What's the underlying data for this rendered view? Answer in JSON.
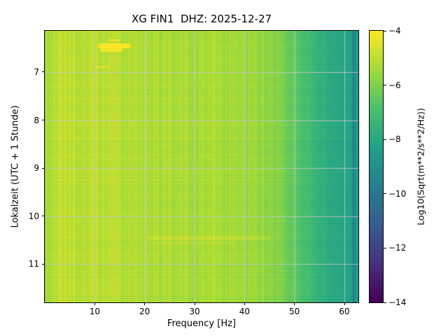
{
  "chart_data": {
    "type": "heatmap",
    "subtype": "spectrogram",
    "title": "XG FIN1  DHZ: 2025-12-27",
    "xlabel": "Frequency [Hz]",
    "ylabel": "Lokalzeit (UTC + 1 Stunde)",
    "xlim": [
      0,
      62.8
    ],
    "ylim_hours": [
      6.14,
      11.8
    ],
    "xticks": [
      10,
      20,
      30,
      40,
      50,
      60
    ],
    "yticks": [
      7,
      8,
      9,
      10,
      11
    ],
    "grid": true,
    "grid_color": "#c8c8c8",
    "colormap": "viridis",
    "colorbar": {
      "label": "Log10(Sqrt(m**2/s**2/Hz))",
      "ticks": [
        -4,
        -6,
        -8,
        -10,
        -12,
        -14
      ],
      "vmin": -14,
      "vmax": -4
    },
    "spectrum_profile": [
      [
        0.0,
        -5.6
      ],
      [
        0.8,
        -5.15
      ],
      [
        3.0,
        -5.0
      ],
      [
        8.0,
        -5.05
      ],
      [
        14.0,
        -5.1
      ],
      [
        22.0,
        -5.2
      ],
      [
        30.0,
        -5.3
      ],
      [
        38.0,
        -5.4
      ],
      [
        44.0,
        -5.6
      ],
      [
        48.0,
        -6.1
      ],
      [
        51.0,
        -6.7
      ],
      [
        54.0,
        -7.4
      ],
      [
        57.0,
        -7.9
      ],
      [
        60.0,
        -8.1
      ],
      [
        61.3,
        -8.2
      ],
      [
        61.7,
        -9.6
      ],
      [
        62.1,
        -9.3
      ],
      [
        62.4,
        -8.2
      ],
      [
        62.8,
        -8.2
      ]
    ],
    "events": [
      {
        "t": 6.45,
        "f1": 10.7,
        "f2": 17.0,
        "dv": 1.15,
        "dur": 0.1
      },
      {
        "t": 6.53,
        "f1": 11.0,
        "f2": 15.5,
        "dv": 0.9,
        "dur": 0.07
      },
      {
        "t": 6.33,
        "f1": 12.5,
        "f2": 15.0,
        "dv": 0.7,
        "dur": 0.05
      },
      {
        "t": 6.88,
        "f1": 10.0,
        "f2": 13.0,
        "dv": 0.5,
        "dur": 0.05
      },
      {
        "t": 10.45,
        "f1": 20.5,
        "f2": 45.0,
        "dv": 0.32,
        "dur": 0.09
      },
      {
        "t": 10.55,
        "f1": 21.0,
        "f2": 38.0,
        "dv": 0.26,
        "dur": 0.06
      }
    ],
    "texture": {
      "column_amp_low": 0.38,
      "column_amp_mid": 0.25,
      "column_amp_high": 0.13,
      "pixel_amp": 0.13,
      "row_amp": 0.14
    }
  }
}
